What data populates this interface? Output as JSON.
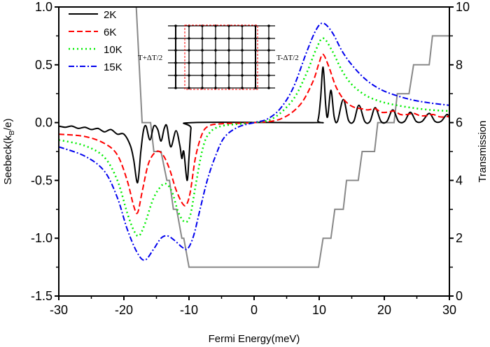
{
  "chart_data": {
    "type": "line",
    "xlabel": "Fermi Energy(meV)",
    "ylabel": "Seebeck(k",
    "ylabel_sub": "B",
    "ylabel_tail": "/e)",
    "y2label": "Transmission",
    "xlim": [
      -30,
      30
    ],
    "ylim": [
      -1.5,
      1.0
    ],
    "y2lim": [
      0,
      10
    ],
    "xticks": [
      "-30",
      "-20",
      "-10",
      "0",
      "10",
      "20",
      "30"
    ],
    "yticks": [
      "1.0",
      "0.5",
      "0.0",
      "-0.5",
      "-1.0",
      "-1.5"
    ],
    "y2ticks": [
      "10",
      "8",
      "6",
      "4",
      "2",
      "0"
    ],
    "grid": false,
    "legend_position": "top-left",
    "series": [
      {
        "name": "2K",
        "axis": "left",
        "color": "#000000",
        "style": "solid",
        "points": [
          [
            -30,
            -0.03
          ],
          [
            -29,
            -0.04
          ],
          [
            -28,
            -0.03
          ],
          [
            -27,
            -0.05
          ],
          [
            -26,
            -0.04
          ],
          [
            -25,
            -0.06
          ],
          [
            -24,
            -0.05
          ],
          [
            -23,
            -0.08
          ],
          [
            -22,
            -0.06
          ],
          [
            -21,
            -0.1
          ],
          [
            -20,
            -0.1
          ],
          [
            -19,
            -0.2
          ],
          [
            -18.5,
            -0.32
          ],
          [
            -17.9,
            -0.52
          ],
          [
            -17.4,
            -0.25
          ],
          [
            -17,
            -0.07
          ],
          [
            -16.6,
            -0.03
          ],
          [
            -16,
            -0.15
          ],
          [
            -15.4,
            -0.03
          ],
          [
            -14.8,
            -0.06
          ],
          [
            -14.3,
            -0.16
          ],
          [
            -13.8,
            -0.05
          ],
          [
            -13.4,
            -0.03
          ],
          [
            -12.8,
            -0.21
          ],
          [
            -12,
            -0.07
          ],
          [
            -11.4,
            -0.2
          ],
          [
            -11.1,
            -0.31
          ],
          [
            -10.8,
            -0.25
          ],
          [
            -10.3,
            -0.5
          ],
          [
            -10,
            -0.3
          ],
          [
            -9.7,
            -0.05
          ],
          [
            -9.4,
            0
          ],
          [
            9,
            0
          ],
          [
            9.8,
            0.02
          ],
          [
            10.2,
            0.2
          ],
          [
            10.6,
            0.48
          ],
          [
            11,
            0.15
          ],
          [
            11.3,
            0.05
          ],
          [
            11.8,
            0.28
          ],
          [
            12.3,
            0.05
          ],
          [
            12.8,
            0.01
          ],
          [
            13.7,
            0.2
          ],
          [
            14.5,
            0.02
          ],
          [
            15.3,
            0.01
          ],
          [
            16.1,
            0.15
          ],
          [
            17,
            0.01
          ],
          [
            17.8,
            0.01
          ],
          [
            18.6,
            0.13
          ],
          [
            19.5,
            0.01
          ],
          [
            20.4,
            0.01
          ],
          [
            21.3,
            0.11
          ],
          [
            22.2,
            0.01
          ],
          [
            23.1,
            0.01
          ],
          [
            24,
            0.09
          ],
          [
            24.9,
            0.01
          ],
          [
            25.8,
            0.01
          ],
          [
            26.9,
            0.08
          ],
          [
            27.8,
            0.01
          ],
          [
            28.7,
            0.01
          ],
          [
            29.6,
            0.07
          ],
          [
            30,
            0.04
          ]
        ]
      },
      {
        "name": "6K",
        "axis": "left",
        "color": "#ff0000",
        "style": "dashed",
        "points": [
          [
            -30,
            -0.1
          ],
          [
            -26,
            -0.12
          ],
          [
            -23,
            -0.18
          ],
          [
            -21,
            -0.28
          ],
          [
            -19.5,
            -0.5
          ],
          [
            -18.5,
            -0.72
          ],
          [
            -17.9,
            -0.78
          ],
          [
            -17.2,
            -0.6
          ],
          [
            -16.2,
            -0.35
          ],
          [
            -15,
            -0.25
          ],
          [
            -14,
            -0.28
          ],
          [
            -13,
            -0.4
          ],
          [
            -12,
            -0.58
          ],
          [
            -11,
            -0.7
          ],
          [
            -10.4,
            -0.71
          ],
          [
            -9.8,
            -0.6
          ],
          [
            -9,
            -0.3
          ],
          [
            -8,
            -0.1
          ],
          [
            -7,
            -0.03
          ],
          [
            -5,
            -0.01
          ],
          [
            0,
            0
          ],
          [
            4,
            0.03
          ],
          [
            7,
            0.15
          ],
          [
            9,
            0.35
          ],
          [
            10,
            0.52
          ],
          [
            10.6,
            0.59
          ],
          [
            11.5,
            0.48
          ],
          [
            12.5,
            0.32
          ],
          [
            13.5,
            0.22
          ],
          [
            14.5,
            0.16
          ],
          [
            15.5,
            0.13
          ],
          [
            16.5,
            0.12
          ],
          [
            17.5,
            0.11
          ],
          [
            18.6,
            0.12
          ],
          [
            19.5,
            0.09
          ],
          [
            20.5,
            0.09
          ],
          [
            21.5,
            0.1
          ],
          [
            22.5,
            0.07
          ],
          [
            23.5,
            0.07
          ],
          [
            24.5,
            0.08
          ],
          [
            25.5,
            0.06
          ],
          [
            26.5,
            0.06
          ],
          [
            27.5,
            0.07
          ],
          [
            28.5,
            0.05
          ],
          [
            29.5,
            0.05
          ],
          [
            30,
            0.06
          ]
        ]
      },
      {
        "name": "10K",
        "axis": "left",
        "color": "#00ee00",
        "style": "dotted",
        "points": [
          [
            -30,
            -0.15
          ],
          [
            -26,
            -0.2
          ],
          [
            -23,
            -0.3
          ],
          [
            -21,
            -0.5
          ],
          [
            -19.5,
            -0.78
          ],
          [
            -18.5,
            -0.93
          ],
          [
            -17.7,
            -0.98
          ],
          [
            -16.8,
            -0.88
          ],
          [
            -15.5,
            -0.66
          ],
          [
            -14.3,
            -0.55
          ],
          [
            -13.5,
            -0.53
          ],
          [
            -12.6,
            -0.6
          ],
          [
            -11.6,
            -0.78
          ],
          [
            -10.6,
            -0.86
          ],
          [
            -9.8,
            -0.8
          ],
          [
            -9,
            -0.55
          ],
          [
            -8,
            -0.25
          ],
          [
            -7,
            -0.1
          ],
          [
            -5,
            -0.03
          ],
          [
            0,
            0
          ],
          [
            3,
            0.04
          ],
          [
            6,
            0.2
          ],
          [
            8,
            0.42
          ],
          [
            9.5,
            0.63
          ],
          [
            10.6,
            0.73
          ],
          [
            12,
            0.62
          ],
          [
            13.5,
            0.45
          ],
          [
            15,
            0.33
          ],
          [
            17,
            0.24
          ],
          [
            19,
            0.19
          ],
          [
            21,
            0.16
          ],
          [
            24,
            0.13
          ],
          [
            27,
            0.11
          ],
          [
            30,
            0.1
          ]
        ]
      },
      {
        "name": "15K",
        "axis": "left",
        "color": "#0000ee",
        "style": "dashdot",
        "points": [
          [
            -30,
            -0.21
          ],
          [
            -26,
            -0.29
          ],
          [
            -23,
            -0.42
          ],
          [
            -21,
            -0.65
          ],
          [
            -19.5,
            -0.92
          ],
          [
            -18,
            -1.12
          ],
          [
            -16.8,
            -1.19
          ],
          [
            -15.5,
            -1.1
          ],
          [
            -14.3,
            -1.0
          ],
          [
            -13.3,
            -0.98
          ],
          [
            -12.2,
            -1.02
          ],
          [
            -11,
            -1.08
          ],
          [
            -10.2,
            -1.09
          ],
          [
            -9.3,
            -0.98
          ],
          [
            -8.3,
            -0.75
          ],
          [
            -7.2,
            -0.5
          ],
          [
            -6,
            -0.3
          ],
          [
            -4.6,
            -0.13
          ],
          [
            -2.5,
            -0.04
          ],
          [
            0,
            0
          ],
          [
            2,
            0.03
          ],
          [
            4,
            0.12
          ],
          [
            6,
            0.3
          ],
          [
            8,
            0.6
          ],
          [
            9.5,
            0.8
          ],
          [
            10.6,
            0.86
          ],
          [
            12,
            0.78
          ],
          [
            13.5,
            0.62
          ],
          [
            15,
            0.5
          ],
          [
            17,
            0.38
          ],
          [
            19,
            0.3
          ],
          [
            21,
            0.25
          ],
          [
            24,
            0.2
          ],
          [
            27,
            0.17
          ],
          [
            30,
            0.15
          ]
        ]
      },
      {
        "axis": "right",
        "color": "#888888",
        "style": "solid",
        "points": [
          [
            -18.6,
            13
          ],
          [
            -18.1,
            10
          ],
          [
            -17.2,
            6
          ],
          [
            -15.9,
            6
          ],
          [
            -15.4,
            5
          ],
          [
            -14.3,
            5
          ],
          [
            -13.4,
            4
          ],
          [
            -13,
            4
          ],
          [
            -12.4,
            3
          ],
          [
            -11.9,
            3
          ],
          [
            -11.1,
            2
          ],
          [
            -10.8,
            2
          ],
          [
            -10,
            1
          ],
          [
            9.9,
            1
          ],
          [
            10.6,
            2
          ],
          [
            11.8,
            2
          ],
          [
            12.4,
            3
          ],
          [
            13.7,
            3
          ],
          [
            14.2,
            4
          ],
          [
            16,
            4
          ],
          [
            16.6,
            5
          ],
          [
            18.5,
            5
          ],
          [
            19,
            6
          ],
          [
            21.5,
            6
          ],
          [
            22,
            7
          ],
          [
            23.8,
            7
          ],
          [
            24.5,
            8
          ],
          [
            26.9,
            8
          ],
          [
            27.4,
            9
          ],
          [
            30,
            9
          ]
        ]
      }
    ],
    "inset": {
      "left_label": "T+ΔT/2",
      "right_label": "T-ΔT/2",
      "grid_color": "#000000",
      "box_color": "#ff0000"
    }
  }
}
